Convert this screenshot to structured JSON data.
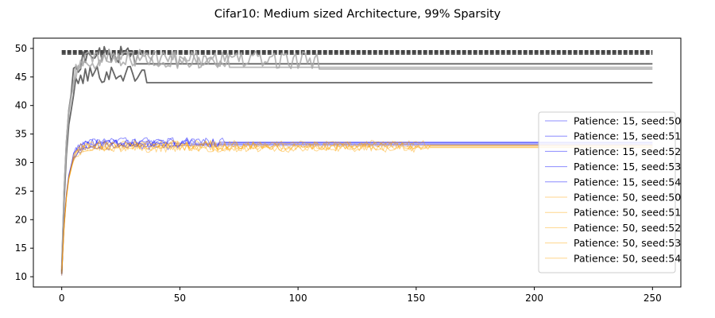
{
  "chart_data": {
    "type": "line",
    "title": "Cifar10: Medium sized Architecture, 99% Sparsity",
    "xlabel": "",
    "ylabel": "",
    "xlim": [
      -12,
      262
    ],
    "ylim": [
      8.2,
      51.8
    ],
    "xticks": [
      0,
      50,
      100,
      150,
      200,
      250
    ],
    "yticks": [
      10,
      15,
      20,
      25,
      30,
      35,
      40,
      45,
      50
    ],
    "grid": false,
    "legend_position": "center-right",
    "colors": {
      "patience15": "#0000ff",
      "patience50": "#ffa500",
      "dense_dark": "#555555",
      "dense_light": "#aaaaaa",
      "reference": "#444444"
    },
    "series": [
      {
        "name": "Patience: 15, seed:50",
        "group": "p15",
        "seed": 50,
        "peak_epoch": 40,
        "final": 33.4
      },
      {
        "name": "Patience: 15, seed:51",
        "group": "p15",
        "seed": 51,
        "peak_epoch": 66,
        "final": 33.6
      },
      {
        "name": "Patience: 15, seed:52",
        "group": "p15",
        "seed": 52,
        "peak_epoch": 55,
        "final": 33.2
      },
      {
        "name": "Patience: 15, seed:53",
        "group": "p15",
        "seed": 53,
        "peak_epoch": 45,
        "final": 33.0
      },
      {
        "name": "Patience: 15, seed:54",
        "group": "p15",
        "seed": 54,
        "peak_epoch": 70,
        "final": 33.5
      },
      {
        "name": "Patience: 50, seed:50",
        "group": "p50",
        "seed": 50,
        "peak_epoch": 150,
        "final": 33.0
      },
      {
        "name": "Patience: 50, seed:51",
        "group": "p50",
        "seed": 51,
        "peak_epoch": 155,
        "final": 32.7
      },
      {
        "name": "Patience: 50, seed:52",
        "group": "p50",
        "seed": 52,
        "peak_epoch": 152,
        "final": 32.9
      },
      {
        "name": "Patience: 50, seed:53",
        "group": "p50",
        "seed": 53,
        "peak_epoch": 150,
        "final": 32.6
      },
      {
        "name": "Patience: 50, seed:54",
        "group": "p50",
        "seed": 54,
        "peak_epoch": 155,
        "final": 33.1
      }
    ],
    "unlabeled_series": [
      {
        "style": "dark",
        "peak_epoch": 35,
        "final": 44.0
      },
      {
        "style": "dark",
        "peak_epoch": 30,
        "final": 47.3
      },
      {
        "style": "light",
        "peak_epoch": 108,
        "final": 46.4
      },
      {
        "style": "light",
        "peak_epoch": 70,
        "final": 46.7
      }
    ],
    "reference_lines": [
      49.0,
      49.2,
      49.4,
      49.6
    ],
    "reference_range": [
      0,
      250
    ]
  }
}
